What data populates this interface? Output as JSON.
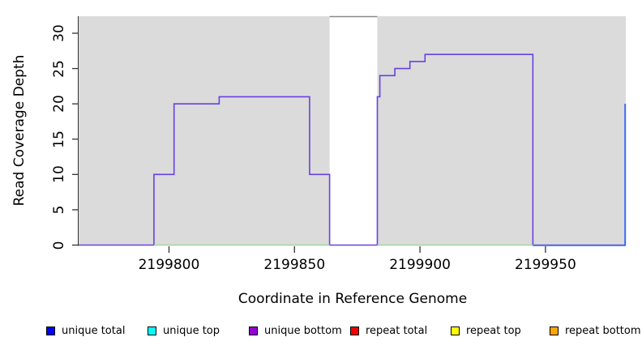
{
  "chart_data": {
    "type": "line",
    "title": "",
    "xlabel": "Coordinate in Reference Genome",
    "ylabel": "Read Coverage Depth",
    "xlim": [
      2199764,
      2199982
    ],
    "ylim": [
      0,
      32.4
    ],
    "grid": false,
    "legend_position": "bottom",
    "x_ticks": [
      "2199800",
      "2199850",
      "2199900",
      "2199950"
    ],
    "x_tick_values": [
      2199800,
      2199850,
      2199900,
      2199950
    ],
    "y_ticks": [
      "0",
      "5",
      "10",
      "15",
      "20",
      "25",
      "30"
    ],
    "y_tick_values": [
      0,
      5,
      10,
      15,
      20,
      25,
      30
    ],
    "panel_color": "#dbdbdb",
    "gap_border_color": "#8a8a8a",
    "axis_color": "#333333",
    "alignment_regions": [
      [
        2199764,
        2199864
      ],
      [
        2199883,
        2199982
      ]
    ],
    "uncovered_gap": [
      2199864,
      2199883
    ],
    "series": [
      {
        "name": "unique bottom coverage (step line)",
        "color": "#6841e0",
        "type": "step",
        "segments": [
          [
            2199764,
            2199794,
            0
          ],
          [
            2199794,
            2199802,
            10
          ],
          [
            2199802,
            2199820,
            20
          ],
          [
            2199820,
            2199856,
            21
          ],
          [
            2199856,
            2199864,
            10
          ],
          [
            2199864,
            2199883,
            0
          ],
          [
            2199883,
            2199884,
            21
          ],
          [
            2199884,
            2199890,
            24
          ],
          [
            2199890,
            2199896,
            25
          ],
          [
            2199896,
            2199902,
            26
          ],
          [
            2199902,
            2199945,
            27
          ],
          [
            2199945,
            2199982,
            0
          ]
        ]
      },
      {
        "name": "zero-coverage overlay (green)",
        "color": "#9cdb9c",
        "type": "zero-line",
        "value": 0,
        "segments": [
          [
            2199794,
            2199864
          ],
          [
            2199883,
            2199945
          ]
        ]
      },
      {
        "name": "unique total (blue, right-edge spike)",
        "color": "#3e6bf0",
        "type": "spike",
        "zero_segment": [
          2199945,
          2199982
        ],
        "spike_x": 2199982,
        "spike_value": 20
      }
    ],
    "legend": [
      {
        "label": "unique total",
        "color": "#0000ee"
      },
      {
        "label": "unique top",
        "color": "#00ffff"
      },
      {
        "label": "unique bottom",
        "color": "#9400d3"
      },
      {
        "label": "repeat total",
        "color": "#ee0000"
      },
      {
        "label": "repeat top",
        "color": "#ffff00"
      },
      {
        "label": "repeat bottom",
        "color": "#ffa500"
      }
    ]
  }
}
